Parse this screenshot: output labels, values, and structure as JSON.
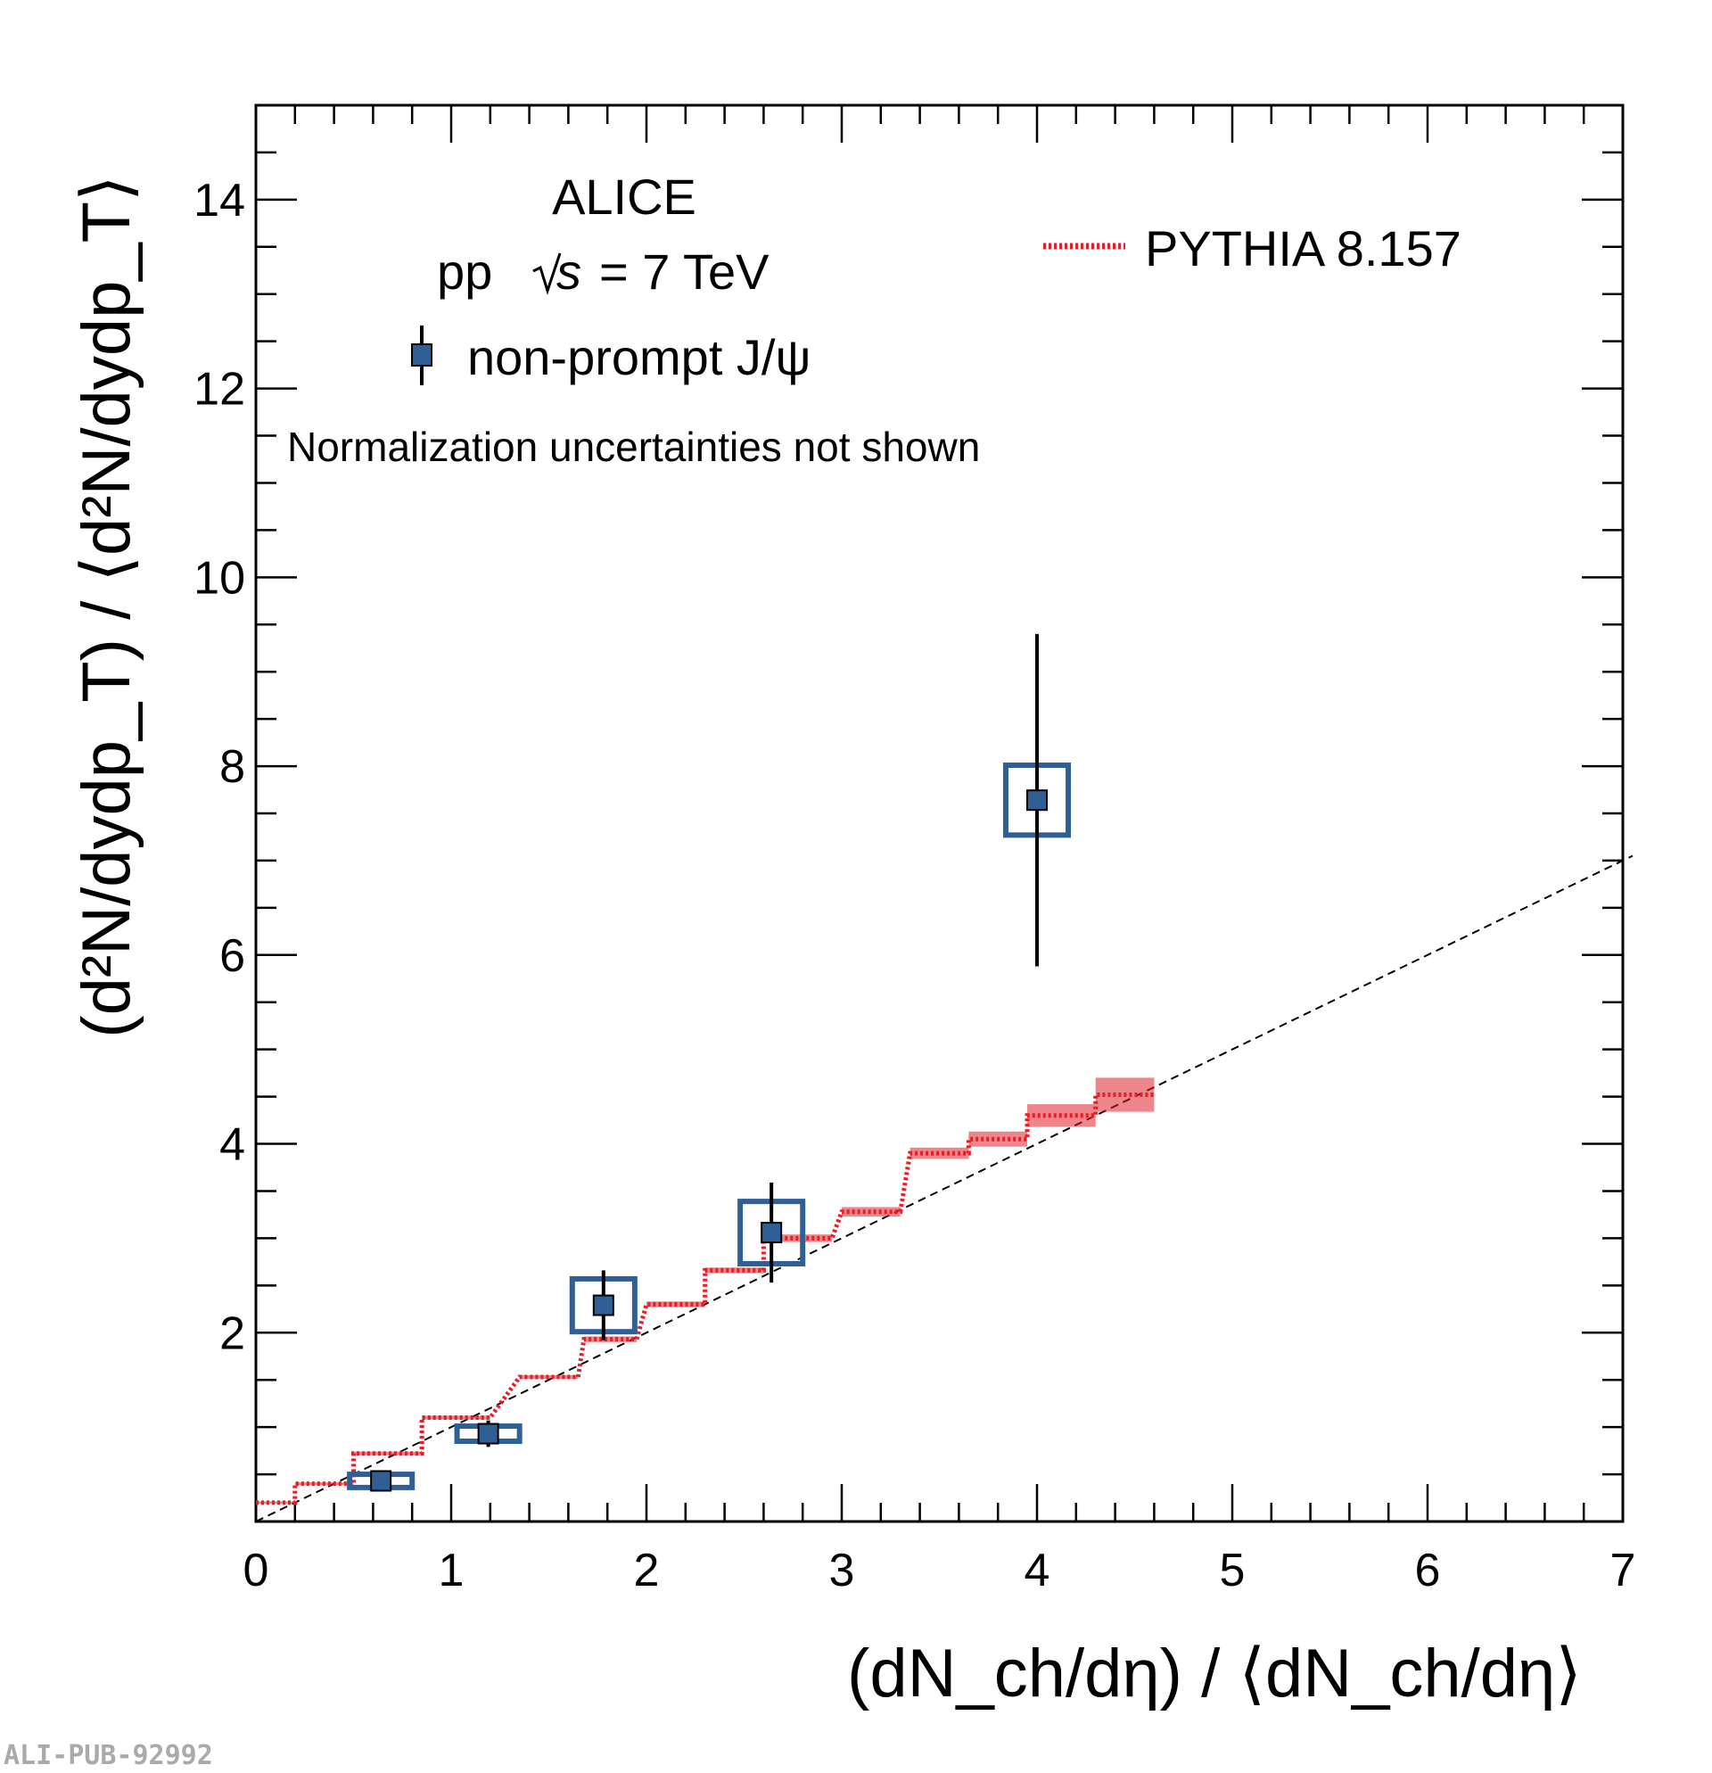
{
  "chart_data": {
    "type": "scatter",
    "title": "",
    "xlabel": "(dN_ch/dη) / ⟨dN_ch/dη⟩",
    "ylabel": "(d²N/dydp_T) / ⟨d²N/dydp_T⟩",
    "xlim": [
      0,
      7
    ],
    "ylim": [
      0,
      15
    ],
    "x_ticks": [
      "0",
      "1",
      "2",
      "3",
      "4",
      "5",
      "6",
      "7"
    ],
    "y_ticks": [
      "2",
      "4",
      "6",
      "8",
      "10",
      "12",
      "14"
    ],
    "annotations": {
      "experiment": "ALICE",
      "system": "pp",
      "energy": "= 7 TeV",
      "note": "Normalization uncertainties not shown",
      "watermark": "ALI-PUB-92992"
    },
    "legend": [
      {
        "label": "non-prompt J/ψ",
        "marker": "square-errorbar",
        "color": "#2f5f94"
      },
      {
        "label": "PYTHIA 8.157",
        "marker": "dotted-line",
        "color": "#e0202a"
      }
    ],
    "series": [
      {
        "name": "non-prompt J/ψ",
        "color": "#2f5f94",
        "points": [
          {
            "x": 0.64,
            "y": 0.43,
            "stat": 0.05,
            "sys_x": 0.16,
            "sys_y": 0.07
          },
          {
            "x": 1.19,
            "y": 0.93,
            "stat": 0.14,
            "sys_x": 0.16,
            "sys_y": 0.08
          },
          {
            "x": 1.78,
            "y": 2.29,
            "stat": 0.37,
            "sys_x": 0.16,
            "sys_y": 0.28
          },
          {
            "x": 2.64,
            "y": 3.06,
            "stat": 0.53,
            "sys_x": 0.16,
            "sys_y": 0.33
          },
          {
            "x": 4.0,
            "y": 7.64,
            "stat": 1.76,
            "sys_x": 0.16,
            "sys_y": 0.37
          }
        ]
      },
      {
        "name": "PYTHIA 8.157",
        "color": "#e0202a",
        "bins": [
          {
            "x0": 0.0,
            "x1": 0.2,
            "y": 0.2,
            "err": 0.01
          },
          {
            "x0": 0.2,
            "x1": 0.5,
            "y": 0.4,
            "err": 0.01
          },
          {
            "x0": 0.5,
            "x1": 0.85,
            "y": 0.72,
            "err": 0.02
          },
          {
            "x0": 0.85,
            "x1": 1.2,
            "y": 1.1,
            "err": 0.02
          },
          {
            "x0": 1.35,
            "x1": 1.65,
            "y": 1.53,
            "err": 0.02
          },
          {
            "x0": 1.68,
            "x1": 1.95,
            "y": 1.93,
            "err": 0.03
          },
          {
            "x0": 2.0,
            "x1": 2.3,
            "y": 2.3,
            "err": 0.03
          },
          {
            "x0": 2.3,
            "x1": 2.6,
            "y": 2.66,
            "err": 0.03
          },
          {
            "x0": 2.6,
            "x1": 2.95,
            "y": 3.0,
            "err": 0.04
          },
          {
            "x0": 3.0,
            "x1": 3.3,
            "y": 3.28,
            "err": 0.05
          },
          {
            "x0": 3.35,
            "x1": 3.65,
            "y": 3.9,
            "err": 0.06
          },
          {
            "x0": 3.65,
            "x1": 3.95,
            "y": 4.05,
            "err": 0.08
          },
          {
            "x0": 3.95,
            "x1": 4.3,
            "y": 4.3,
            "err": 0.12
          },
          {
            "x0": 4.3,
            "x1": 4.6,
            "y": 4.52,
            "err": 0.18
          }
        ]
      },
      {
        "name": "y = x reference",
        "color": "#000000",
        "style": "dashed",
        "x": [
          0,
          7
        ],
        "y": [
          0,
          7
        ]
      }
    ]
  }
}
